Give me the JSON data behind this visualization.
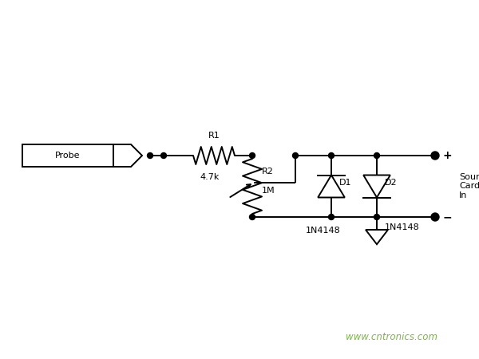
{
  "background_color": "#ffffff",
  "line_color": "#000000",
  "text_color": "#000000",
  "watermark_color": "#7db84a",
  "watermark_text": "www.cntronics.com",
  "watermark_fontsize": 8.5,
  "fig_width": 6.0,
  "fig_height": 4.5,
  "dpi": 100,
  "probe_label": "Probe",
  "r1_label": "R1",
  "r1_value": "4.7k",
  "r2_label": "R2",
  "r2_value": "1M",
  "d1_label": "D1",
  "d1_value": "1N4148",
  "d2_label": "D2",
  "d2_value": "1N4148",
  "plus_label": "+",
  "minus_label": "−",
  "soundcard_label": "Sound\nCard\nIn"
}
